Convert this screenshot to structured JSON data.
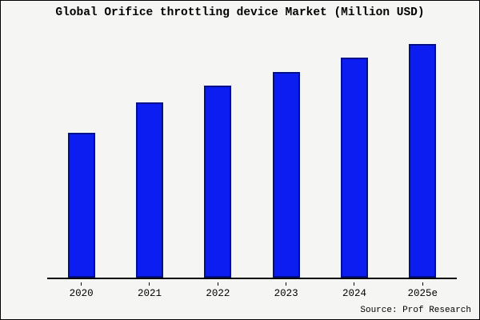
{
  "title": "Global Orifice throttling device Market (Million USD)",
  "source": "Source: Prof Research",
  "colors": {
    "bar_fill": "#0b1df0",
    "bar_border": "#000f8a",
    "axis": "#000000",
    "background": "#f5f5f3"
  },
  "chart_data": {
    "type": "bar",
    "categories": [
      "2020",
      "2021",
      "2022",
      "2023",
      "2024",
      "2025e"
    ],
    "values": [
      62,
      75,
      82,
      88,
      94,
      100
    ],
    "title": "Global Orifice throttling device Market (Million USD)",
    "xlabel": "",
    "ylabel": "",
    "ylim": [
      0,
      103
    ],
    "grid": false,
    "legend": false,
    "annotations": [
      "Source: Prof Research"
    ]
  }
}
